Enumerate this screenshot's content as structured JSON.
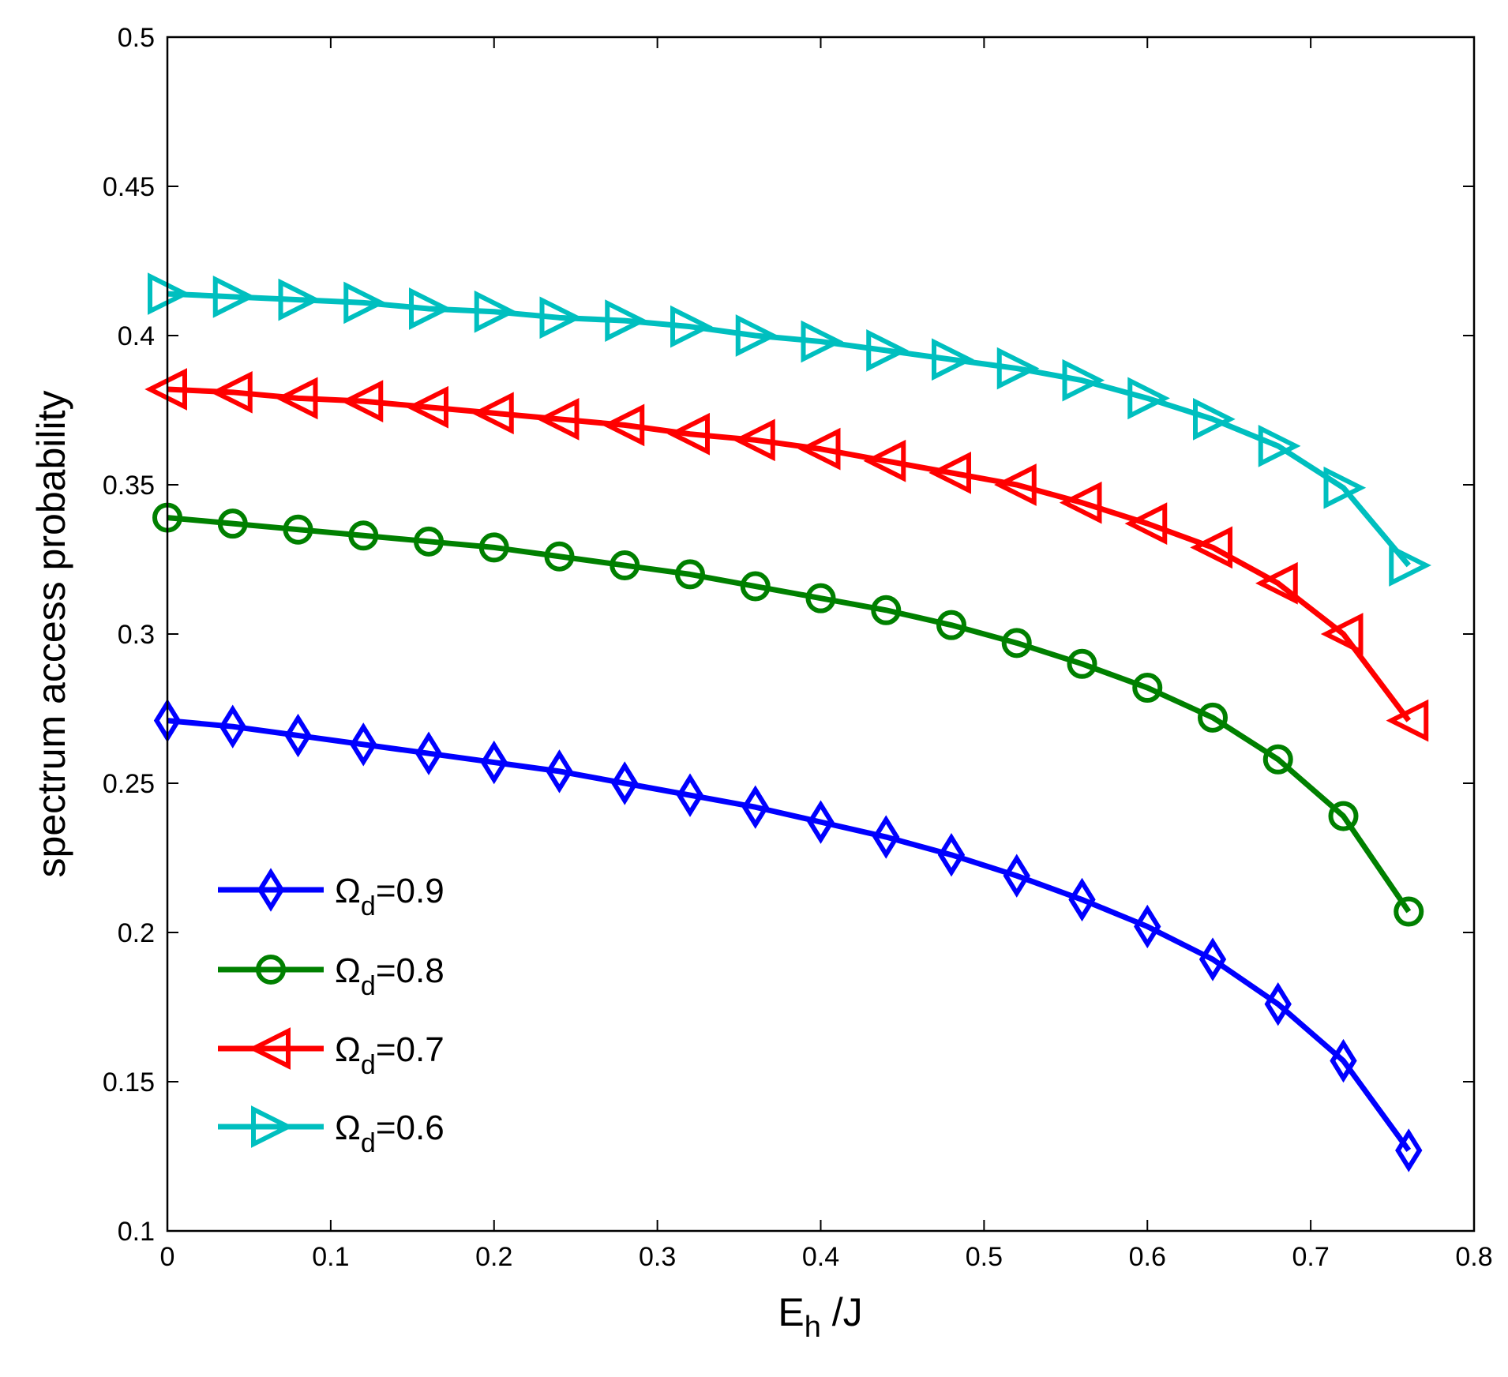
{
  "chart_data": {
    "type": "line",
    "title": "",
    "xlabel": "E",
    "xlabel_subscript": "h",
    "xlabel_suffix": " /J",
    "ylabel": "spectrum access probability",
    "xlim": [
      0,
      0.8
    ],
    "ylim": [
      0.1,
      0.5
    ],
    "xticks": [
      0,
      0.1,
      0.2,
      0.3,
      0.4,
      0.5,
      0.6,
      0.7,
      0.8
    ],
    "xtick_labels": [
      "0",
      "0.1",
      "0.2",
      "0.3",
      "0.4",
      "0.5",
      "0.6",
      "0.7",
      "0.8"
    ],
    "yticks": [
      0.1,
      0.15,
      0.2,
      0.25,
      0.3,
      0.35,
      0.4,
      0.45,
      0.5
    ],
    "ytick_labels": [
      "0.1",
      "0.15",
      "0.2",
      "0.25",
      "0.3",
      "0.35",
      "0.4",
      "0.45",
      "0.5"
    ],
    "grid": false,
    "legend_position": "bottom-left",
    "x": [
      0,
      0.04,
      0.08,
      0.12,
      0.16,
      0.2,
      0.24,
      0.28,
      0.32,
      0.36,
      0.4,
      0.44,
      0.48,
      0.52,
      0.56,
      0.6,
      0.64,
      0.68,
      0.72,
      0.76
    ],
    "series": [
      {
        "name": "Ω_d=0.9",
        "legend_symbol": "Ω",
        "legend_sub": "d",
        "legend_value": "=0.9",
        "color": "#0000ff",
        "marker": "diamond",
        "values": [
          0.271,
          0.269,
          0.266,
          0.263,
          0.26,
          0.257,
          0.254,
          0.25,
          0.246,
          0.242,
          0.237,
          0.232,
          0.226,
          0.219,
          0.211,
          0.202,
          0.191,
          0.176,
          0.157,
          0.127
        ]
      },
      {
        "name": "Ω_d=0.8",
        "legend_symbol": "Ω",
        "legend_sub": "d",
        "legend_value": "=0.8",
        "color": "#008000",
        "marker": "circle",
        "values": [
          0.339,
          0.337,
          0.335,
          0.333,
          0.331,
          0.329,
          0.326,
          0.323,
          0.32,
          0.316,
          0.312,
          0.308,
          0.303,
          0.297,
          0.29,
          0.282,
          0.272,
          0.258,
          0.239,
          0.207
        ]
      },
      {
        "name": "Ω_d=0.7",
        "legend_symbol": "Ω",
        "legend_sub": "d",
        "legend_value": "=0.7",
        "color": "#ff0000",
        "marker": "triangle-left",
        "values": [
          0.382,
          0.381,
          0.379,
          0.378,
          0.376,
          0.374,
          0.372,
          0.37,
          0.367,
          0.365,
          0.362,
          0.358,
          0.354,
          0.35,
          0.344,
          0.337,
          0.329,
          0.317,
          0.3,
          0.271
        ]
      },
      {
        "name": "Ω_d=0.6",
        "legend_symbol": "Ω",
        "legend_sub": "d",
        "legend_value": "=0.6",
        "color": "#00bfbf",
        "marker": "triangle-right",
        "values": [
          0.414,
          0.413,
          0.412,
          0.411,
          0.409,
          0.408,
          0.406,
          0.405,
          0.403,
          0.4,
          0.398,
          0.395,
          0.392,
          0.389,
          0.385,
          0.379,
          0.372,
          0.363,
          0.349,
          0.323
        ]
      }
    ]
  }
}
